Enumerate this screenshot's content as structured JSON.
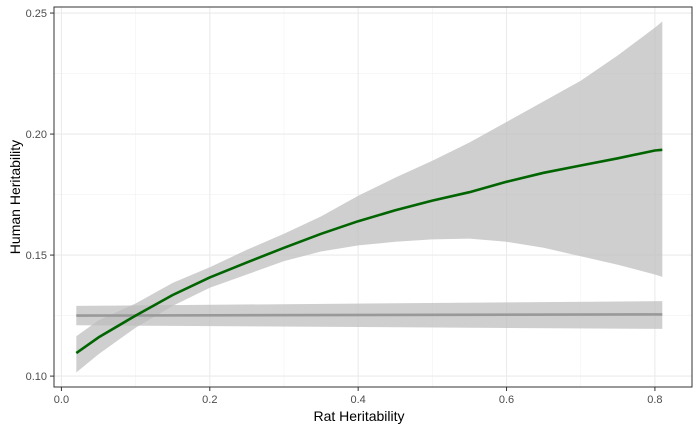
{
  "chart_data": {
    "type": "line",
    "title": "",
    "xlabel": "Rat Heritability",
    "ylabel": "Human Heritability",
    "xlim": [
      -0.01,
      0.85
    ],
    "ylim": [
      0.0955,
      0.2525
    ],
    "x_ticks": [
      0.0,
      0.2,
      0.4,
      0.6,
      0.8
    ],
    "x_tick_labels": [
      "0.0",
      "0.2",
      "0.4",
      "0.6",
      "0.8"
    ],
    "y_ticks": [
      0.1,
      0.15,
      0.2,
      0.25
    ],
    "y_tick_labels": [
      "0.10",
      "0.15",
      "0.20",
      "0.25"
    ],
    "grid": true,
    "legend": "none",
    "series": [
      {
        "color": "#006400",
        "band_color": "#bdbdbd",
        "x": [
          0.02,
          0.05,
          0.1,
          0.15,
          0.2,
          0.25,
          0.3,
          0.35,
          0.4,
          0.45,
          0.5,
          0.55,
          0.6,
          0.65,
          0.7,
          0.75,
          0.8,
          0.81
        ],
        "y": [
          0.1095,
          0.116,
          0.125,
          0.1335,
          0.1408,
          0.147,
          0.153,
          0.1588,
          0.164,
          0.1685,
          0.1725,
          0.176,
          0.1803,
          0.184,
          0.187,
          0.19,
          0.1932,
          0.1935
        ],
        "lower": [
          0.1015,
          0.109,
          0.12,
          0.129,
          0.1365,
          0.142,
          0.1475,
          0.1515,
          0.154,
          0.1555,
          0.1565,
          0.1568,
          0.1555,
          0.153,
          0.1495,
          0.146,
          0.142,
          0.141
        ],
        "upper": [
          0.1165,
          0.123,
          0.13,
          0.1385,
          0.145,
          0.1522,
          0.1588,
          0.166,
          0.1745,
          0.182,
          0.189,
          0.1965,
          0.205,
          0.2135,
          0.222,
          0.2325,
          0.244,
          0.2465
        ]
      },
      {
        "color": "#999999",
        "band_color": "#bdbdbd",
        "x": [
          0.02,
          0.81
        ],
        "y": [
          0.125,
          0.1255
        ],
        "lower": [
          0.121,
          0.1195
        ],
        "upper": [
          0.129,
          0.131
        ]
      }
    ]
  }
}
